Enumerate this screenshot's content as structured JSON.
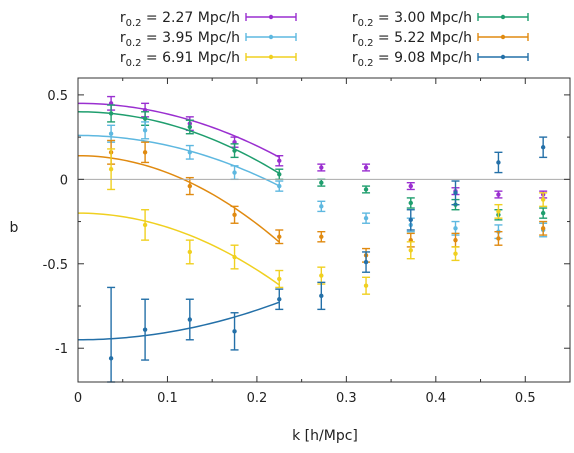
{
  "chart_data": {
    "type": "scatter",
    "title": "",
    "xlabel": "k [h/Mpc]",
    "ylabel": "b",
    "xlim": [
      0,
      0.55
    ],
    "ylim": [
      -1.2,
      0.6
    ],
    "xticks": [
      "0",
      "0.1",
      "0.2",
      "0.3",
      "0.4",
      "0.5"
    ],
    "yticks": [
      "0.5",
      "0",
      "-0.5",
      "-1"
    ],
    "grid": false,
    "zero_line": true,
    "legend_position": "top (two columns, above the plot)",
    "series": [
      {
        "name_prefix": "r",
        "name_sub": "0.2",
        "name_suffix": " = 2.27 Mpc/h",
        "color": "#9a2fd0",
        "fit": {
          "a": 0.45,
          "b": -6.3,
          "xmax": 0.225
        },
        "points": [
          [
            0.037,
            0.45,
            0.04
          ],
          [
            0.075,
            0.41,
            0.04
          ],
          [
            0.125,
            0.33,
            0.04
          ],
          [
            0.175,
            0.22,
            0.03
          ],
          [
            0.225,
            0.11,
            0.03
          ],
          [
            0.272,
            0.07,
            0.02
          ],
          [
            0.322,
            0.07,
            0.02
          ],
          [
            0.372,
            -0.04,
            0.02
          ],
          [
            0.422,
            -0.07,
            0.02
          ],
          [
            0.47,
            -0.09,
            0.02
          ],
          [
            0.52,
            -0.09,
            0.02
          ]
        ]
      },
      {
        "name_prefix": "r",
        "name_sub": "0.2",
        "name_suffix": " = 3.00 Mpc/h",
        "color": "#1f9e6e",
        "fit": {
          "a": 0.4,
          "b": -7.2,
          "xmax": 0.225
        },
        "points": [
          [
            0.037,
            0.39,
            0.05
          ],
          [
            0.075,
            0.36,
            0.04
          ],
          [
            0.125,
            0.31,
            0.04
          ],
          [
            0.175,
            0.17,
            0.04
          ],
          [
            0.225,
            0.03,
            0.03
          ],
          [
            0.272,
            -0.02,
            0.02
          ],
          [
            0.322,
            -0.06,
            0.02
          ],
          [
            0.372,
            -0.14,
            0.03
          ],
          [
            0.422,
            -0.15,
            0.03
          ],
          [
            0.47,
            -0.21,
            0.03
          ],
          [
            0.52,
            -0.2,
            0.03
          ]
        ]
      },
      {
        "name_prefix": "r",
        "name_sub": "0.2",
        "name_suffix": " = 3.95 Mpc/h",
        "color": "#5eb8e0",
        "fit": {
          "a": 0.26,
          "b": -5.9,
          "xmax": 0.225
        },
        "points": [
          [
            0.037,
            0.27,
            0.05
          ],
          [
            0.075,
            0.29,
            0.05
          ],
          [
            0.125,
            0.16,
            0.04
          ],
          [
            0.175,
            0.04,
            0.04
          ],
          [
            0.225,
            -0.04,
            0.03
          ],
          [
            0.272,
            -0.16,
            0.03
          ],
          [
            0.322,
            -0.23,
            0.03
          ],
          [
            0.372,
            -0.27,
            0.04
          ],
          [
            0.422,
            -0.29,
            0.04
          ],
          [
            0.47,
            -0.31,
            0.04
          ],
          [
            0.52,
            -0.3,
            0.04
          ]
        ]
      },
      {
        "name_prefix": "r",
        "name_sub": "0.2",
        "name_suffix": " = 5.22 Mpc/h",
        "color": "#e08a10",
        "fit": {
          "a": 0.14,
          "b": -10.1,
          "xmax": 0.225
        },
        "points": [
          [
            0.037,
            0.16,
            0.07
          ],
          [
            0.075,
            0.16,
            0.06
          ],
          [
            0.125,
            -0.04,
            0.05
          ],
          [
            0.175,
            -0.21,
            0.05
          ],
          [
            0.225,
            -0.34,
            0.04
          ],
          [
            0.272,
            -0.34,
            0.03
          ],
          [
            0.322,
            -0.45,
            0.04
          ],
          [
            0.372,
            -0.36,
            0.04
          ],
          [
            0.422,
            -0.36,
            0.04
          ],
          [
            0.47,
            -0.35,
            0.04
          ],
          [
            0.52,
            -0.29,
            0.04
          ]
        ]
      },
      {
        "name_prefix": "r",
        "name_sub": "0.2",
        "name_suffix": " = 6.91 Mpc/h",
        "color": "#f0d020",
        "fit": {
          "a": -0.2,
          "b": -8.4,
          "xmax": 0.225
        },
        "points": [
          [
            0.037,
            0.06,
            0.12
          ],
          [
            0.075,
            -0.27,
            0.09
          ],
          [
            0.125,
            -0.43,
            0.07
          ],
          [
            0.175,
            -0.46,
            0.07
          ],
          [
            0.225,
            -0.59,
            0.05
          ],
          [
            0.272,
            -0.57,
            0.05
          ],
          [
            0.322,
            -0.63,
            0.05
          ],
          [
            0.372,
            -0.42,
            0.05
          ],
          [
            0.422,
            -0.44,
            0.04
          ],
          [
            0.47,
            -0.19,
            0.04
          ],
          [
            0.52,
            -0.12,
            0.04
          ]
        ]
      },
      {
        "name_prefix": "r",
        "name_sub": "0.2",
        "name_suffix": " = 9.08 Mpc/h",
        "color": "#2470a8",
        "fit": {
          "a": -0.95,
          "b": 4.4,
          "xmax": 0.225
        },
        "points": [
          [
            0.037,
            -1.06,
            0.42
          ],
          [
            0.075,
            -0.89,
            0.18
          ],
          [
            0.125,
            -0.83,
            0.12
          ],
          [
            0.175,
            -0.9,
            0.11
          ],
          [
            0.225,
            -0.71,
            0.06
          ],
          [
            0.272,
            -0.69,
            0.08
          ],
          [
            0.322,
            -0.49,
            0.06
          ],
          [
            0.372,
            -0.24,
            0.06
          ],
          [
            0.422,
            -0.08,
            0.07
          ],
          [
            0.47,
            0.1,
            0.06
          ],
          [
            0.52,
            0.19,
            0.06
          ]
        ]
      }
    ]
  }
}
